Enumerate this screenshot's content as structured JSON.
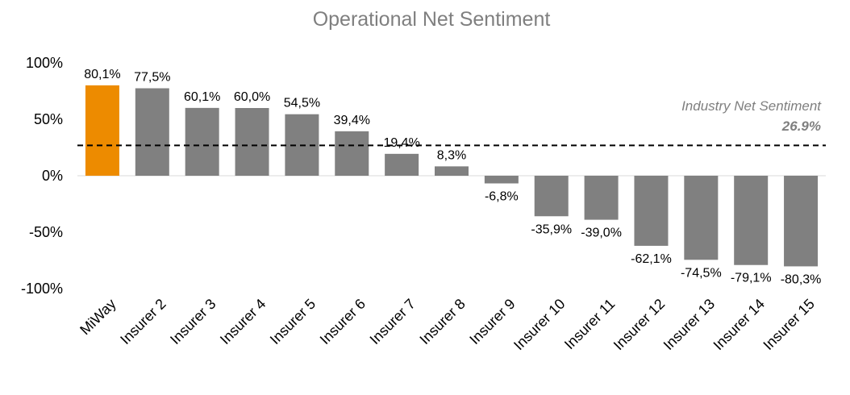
{
  "chart_data": {
    "type": "bar",
    "title": "Operational Net Sentiment",
    "categories": [
      "MiWay",
      "Insurer 2",
      "Insurer 3",
      "Insurer 4",
      "Insurer 5",
      "Insurer 6",
      "Insurer 7",
      "Insurer 8",
      "Insurer 9",
      "Insurer 10",
      "Insurer 11",
      "Insurer 12",
      "Insurer 13",
      "Insurer 14",
      "Insurer 15"
    ],
    "values": [
      80.1,
      77.5,
      60.1,
      60.0,
      54.5,
      39.4,
      19.4,
      8.3,
      -6.8,
      -35.9,
      -39.0,
      -62.1,
      -74.5,
      -79.1,
      -80.3
    ],
    "data_labels": [
      "80,1%",
      "77,5%",
      "60,1%",
      "60,0%",
      "54,5%",
      "39,4%",
      "19,4%",
      "8,3%",
      "-6,8%",
      "-35,9%",
      "-39,0%",
      "-62,1%",
      "-74,5%",
      "-79,1%",
      "-80,3%"
    ],
    "highlight_index": 0,
    "colors": {
      "highlight": "#ED8B00",
      "bar": "#808080",
      "reference_line": "#000000",
      "axis": "#d9d9d9",
      "title": "#7f7f7f"
    },
    "ylim": [
      -100,
      100
    ],
    "yticks": [
      100,
      50,
      0,
      -50,
      -100
    ],
    "ytick_labels": [
      "100%",
      "50%",
      "0%",
      "-50%",
      "-100%"
    ],
    "xlabel": "",
    "ylabel": "",
    "grid": false,
    "reference_line": {
      "value": 26.9,
      "label": "Industry Net Sentiment",
      "value_label": "26.9%",
      "style": "dashed"
    }
  }
}
